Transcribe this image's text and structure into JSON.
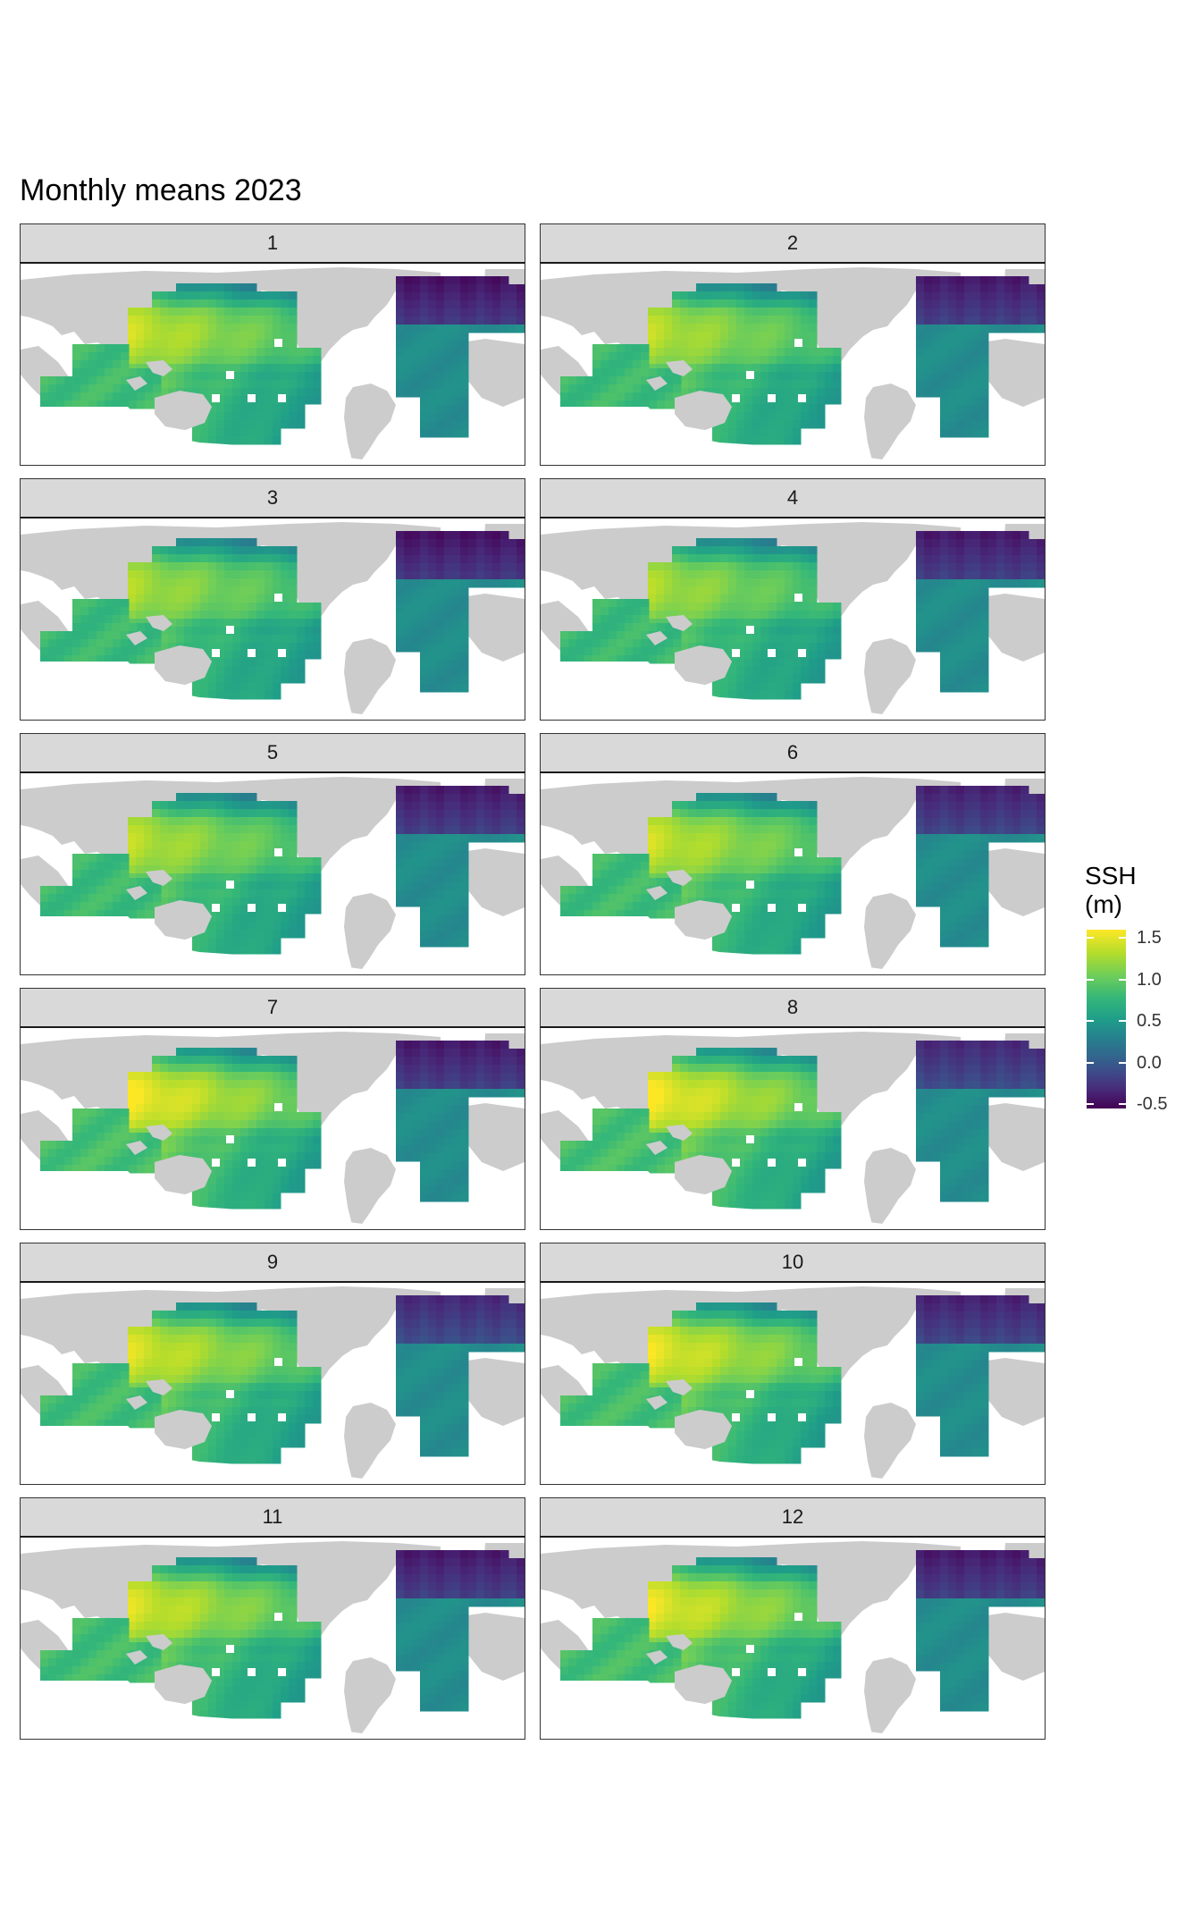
{
  "title": "Monthly means 2023",
  "panels": [
    {
      "label": "1",
      "peak": 1.45,
      "north_atlantic": -0.45
    },
    {
      "label": "2",
      "peak": 1.4,
      "north_atlantic": -0.4
    },
    {
      "label": "3",
      "peak": 1.35,
      "north_atlantic": -0.45
    },
    {
      "label": "4",
      "peak": 1.35,
      "north_atlantic": -0.4
    },
    {
      "label": "5",
      "peak": 1.4,
      "north_atlantic": -0.4
    },
    {
      "label": "6",
      "peak": 1.45,
      "north_atlantic": -0.35
    },
    {
      "label": "7",
      "peak": 1.6,
      "north_atlantic": -0.4
    },
    {
      "label": "8",
      "peak": 1.6,
      "north_atlantic": -0.3
    },
    {
      "label": "9",
      "peak": 1.5,
      "north_atlantic": -0.3
    },
    {
      "label": "10",
      "peak": 1.55,
      "north_atlantic": -0.35
    },
    {
      "label": "11",
      "peak": 1.5,
      "north_atlantic": -0.4
    },
    {
      "label": "12",
      "peak": 1.55,
      "north_atlantic": -0.4
    }
  ],
  "legend": {
    "title_line1": "SSH",
    "title_line2": "(m)",
    "ticks": [
      "1.5",
      "1.0",
      "0.5",
      "0.0",
      "-0.5"
    ],
    "tick_values": [
      1.5,
      1.0,
      0.5,
      0.0,
      -0.5
    ],
    "range": [
      -0.55,
      1.6
    ],
    "palette": "viridis"
  },
  "colors": {
    "land": "#cccccc",
    "ocean_blank": "#ffffff",
    "strip_bg": "#d9d9d9"
  }
}
